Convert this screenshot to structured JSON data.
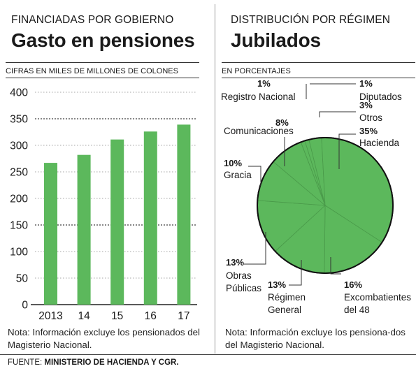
{
  "left_panel": {
    "kicker": "FINANCIADAS POR GOBIERNO",
    "title": "Gasto en pensiones",
    "subtitle": "CIFRAS EN MILES DE MILLONES DE COLONES",
    "note": "Nota: Información excluye los pensionados del Magisterio Nacional."
  },
  "right_panel": {
    "kicker": "DISTRIBUCIÓN POR RÉGIMEN",
    "title": "Jubilados",
    "subtitle": "EN PORCENTAJES",
    "note": "Nota: Información excluye los pensiona-dos del Magisterio Nacional."
  },
  "footer": {
    "source_label": "FUENTE:",
    "source_text": "MINISTERIO DE HACIENDA Y CGR."
  },
  "colors": {
    "bar": "#5cb85c",
    "pie": "#5cb85c",
    "pie_lines": "#4a9a4a",
    "text": "#1a1a1a"
  },
  "chart_data": [
    {
      "type": "bar",
      "categories": [
        "2013",
        "14",
        "15",
        "16",
        "17"
      ],
      "values": [
        267,
        282,
        311,
        326,
        339
      ],
      "yticks": [
        0,
        50,
        100,
        150,
        200,
        250,
        300,
        350,
        400
      ],
      "ylim": [
        0,
        400
      ],
      "grid": true
    },
    {
      "type": "pie",
      "slices": [
        {
          "label": "Registro Nacional",
          "pct_text": "1%",
          "value": 1
        },
        {
          "label": "Diputados",
          "pct_text": "1%",
          "value": 1
        },
        {
          "label": "Otros",
          "pct_text": "3%",
          "value": 3
        },
        {
          "label": "Hacienda",
          "pct_text": "35%",
          "value": 35
        },
        {
          "label": "Excombatientes del 48",
          "pct_text": "16%",
          "value": 16
        },
        {
          "label": "Régimen General",
          "pct_text": "13%",
          "value": 13
        },
        {
          "label": "Obras Públicas",
          "pct_text": "13%",
          "value": 13
        },
        {
          "label": "Gracia",
          "pct_text": "10%",
          "value": 10
        },
        {
          "label": "Comunicaciones",
          "pct_text": "8%",
          "value": 8
        }
      ]
    }
  ]
}
